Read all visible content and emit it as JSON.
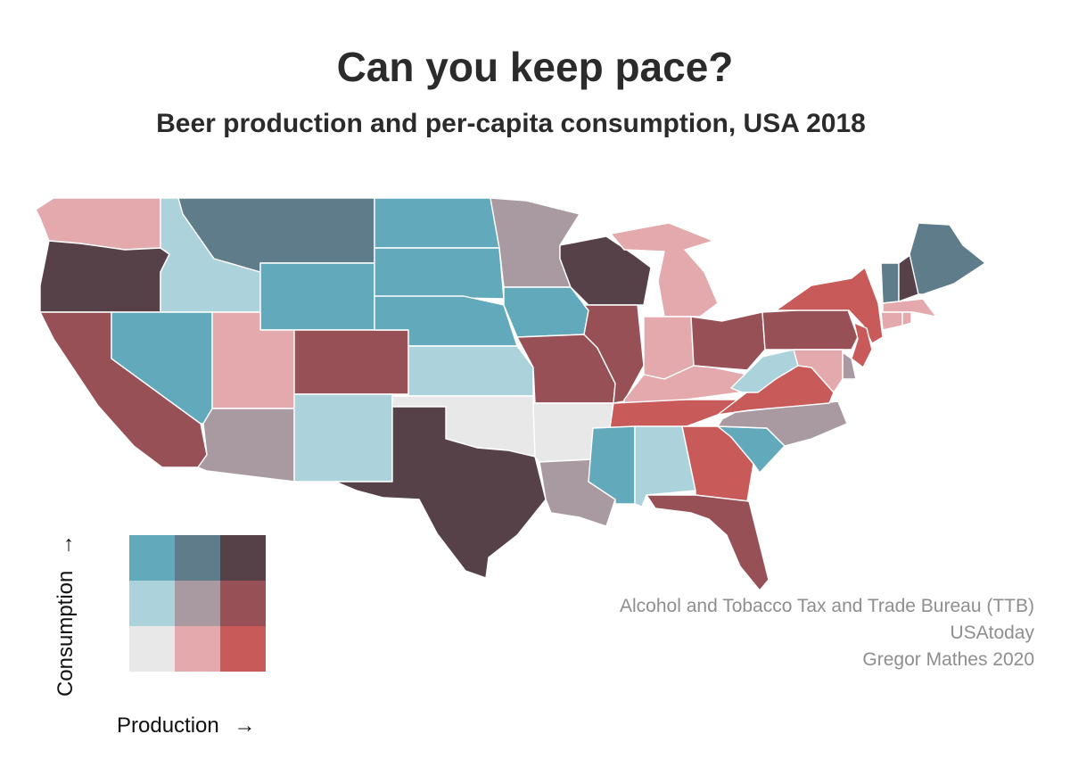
{
  "header": {
    "title": "Can you keep pace?",
    "subtitle": "Beer production and per-capita consumption, USA 2018"
  },
  "palette": {
    "low_low": "#e8e8e8",
    "low_mid": "#acd3dc",
    "low_high": "#62a9bc",
    "mid_low": "#e3a9ac",
    "mid_mid": "#a99aa2",
    "mid_high": "#5f7c8a",
    "high_low": "#c85a5a",
    "high_mid": "#975055",
    "high_high": "#574149"
  },
  "legend": {
    "x_label": "Production",
    "y_label": "Consumption",
    "arrow": "→",
    "grid": [
      [
        "low_high",
        "mid_high",
        "high_high"
      ],
      [
        "low_mid",
        "mid_mid",
        "high_mid"
      ],
      [
        "low_low",
        "mid_low",
        "high_low"
      ]
    ]
  },
  "credits": [
    "Alcohol and Tobacco Tax and Trade Bureau (TTB)",
    "USAtoday",
    "Gregor Mathes 2020"
  ],
  "states": [
    {
      "code": "WA",
      "class": "mid_low"
    },
    {
      "code": "OR",
      "class": "high_high"
    },
    {
      "code": "CA",
      "class": "high_mid"
    },
    {
      "code": "ID",
      "class": "low_mid"
    },
    {
      "code": "NV",
      "class": "low_high"
    },
    {
      "code": "MT",
      "class": "mid_high"
    },
    {
      "code": "WY",
      "class": "low_high"
    },
    {
      "code": "UT",
      "class": "mid_low"
    },
    {
      "code": "AZ",
      "class": "mid_mid"
    },
    {
      "code": "CO",
      "class": "high_mid"
    },
    {
      "code": "NM",
      "class": "low_mid"
    },
    {
      "code": "ND",
      "class": "low_high"
    },
    {
      "code": "SD",
      "class": "low_high"
    },
    {
      "code": "NE",
      "class": "low_high"
    },
    {
      "code": "KS",
      "class": "low_mid"
    },
    {
      "code": "OK",
      "class": "low_low"
    },
    {
      "code": "TX",
      "class": "high_high"
    },
    {
      "code": "MN",
      "class": "mid_mid"
    },
    {
      "code": "IA",
      "class": "low_high"
    },
    {
      "code": "MO",
      "class": "high_mid"
    },
    {
      "code": "AR",
      "class": "low_low"
    },
    {
      "code": "LA",
      "class": "mid_mid"
    },
    {
      "code": "WI",
      "class": "high_high"
    },
    {
      "code": "IL",
      "class": "high_mid"
    },
    {
      "code": "MI",
      "class": "mid_low"
    },
    {
      "code": "IN",
      "class": "mid_low"
    },
    {
      "code": "OH",
      "class": "high_mid"
    },
    {
      "code": "KY",
      "class": "mid_low"
    },
    {
      "code": "TN",
      "class": "high_low"
    },
    {
      "code": "MS",
      "class": "low_high"
    },
    {
      "code": "AL",
      "class": "low_mid"
    },
    {
      "code": "GA",
      "class": "high_low"
    },
    {
      "code": "FL",
      "class": "high_mid"
    },
    {
      "code": "SC",
      "class": "low_high"
    },
    {
      "code": "NC",
      "class": "mid_mid"
    },
    {
      "code": "VA",
      "class": "high_low"
    },
    {
      "code": "WV",
      "class": "low_mid"
    },
    {
      "code": "PA",
      "class": "high_mid"
    },
    {
      "code": "NY",
      "class": "high_low"
    },
    {
      "code": "NJ",
      "class": "high_low"
    },
    {
      "code": "DE",
      "class": "mid_mid"
    },
    {
      "code": "MD",
      "class": "mid_low"
    },
    {
      "code": "VT",
      "class": "mid_high"
    },
    {
      "code": "NH",
      "class": "high_high"
    },
    {
      "code": "ME",
      "class": "mid_high"
    },
    {
      "code": "MA",
      "class": "mid_low"
    },
    {
      "code": "CT",
      "class": "mid_low"
    },
    {
      "code": "RI",
      "class": "mid_low"
    }
  ]
}
